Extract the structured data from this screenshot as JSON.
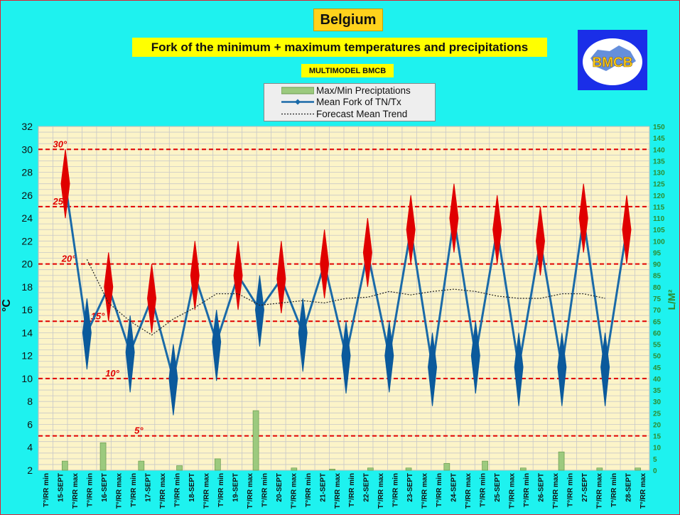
{
  "header": {
    "title": "Belgium",
    "subtitle": "Fork of the minimum + maximum temperatures and precipitations",
    "model": "MULTIMODEL BMCB",
    "logo_text": "BMCB"
  },
  "legend": {
    "items": [
      "Max/Min Preciptations",
      "Mean Fork of TN/Tx",
      "Forecast Mean Trend"
    ]
  },
  "colors": {
    "background": "#1ef2ef",
    "plot_bg": "#fcf4c8",
    "fork_line": "#1a6aa8",
    "min_marker": "#0b5a9c",
    "max_marker": "#e00000",
    "reference_line": "#e00000",
    "precip_bar": "#9cca7e",
    "right_axis": "#2e8b2e"
  },
  "chart_data": {
    "type": "line",
    "ylabel": "°C",
    "y2label": "L/M²",
    "ylim": [
      2,
      32
    ],
    "y_ticks": [
      2,
      4,
      6,
      8,
      10,
      12,
      14,
      16,
      18,
      20,
      22,
      24,
      26,
      28,
      30,
      32
    ],
    "y2lim": [
      0,
      150
    ],
    "y2_ticks": [
      0,
      5,
      10,
      15,
      20,
      25,
      30,
      35,
      40,
      45,
      50,
      55,
      60,
      65,
      70,
      75,
      80,
      85,
      90,
      95,
      100,
      105,
      110,
      115,
      120,
      125,
      130,
      135,
      140,
      145,
      150
    ],
    "grid": true,
    "x_ticks": [
      "T°/RR min",
      "15-SEPT",
      "T°/RR max",
      "T°/RR min",
      "16-SEPT",
      "T°/RR max",
      "T°/RR min",
      "17-SEPT",
      "T°/RR max",
      "T°/RR min",
      "18-SEPT",
      "T°/RR max",
      "T°/RR min",
      "19-SEPT",
      "T°/RR max",
      "T°/RR min",
      "20-SEPT",
      "T°/RR max",
      "T°/RR min",
      "21-SEPT",
      "T°/RR max",
      "T°/RR min",
      "22-SEPT",
      "T°/RR max",
      "T°/RR min",
      "23-SEPT",
      "T°/RR max",
      "T°/RR min",
      "24-SEPT",
      "T°/RR max",
      "T°/RR min",
      "25-SEPT",
      "T°/RR max",
      "T°/RR min",
      "26-SEPT",
      "T°/RR max",
      "T°/RR min",
      "27-SEPT",
      "T°/RR max",
      "T°/RR min",
      "28-SEPT",
      "T°/RR max"
    ],
    "reference_lines": [
      {
        "value": 30,
        "label": "30°"
      },
      {
        "value": 25,
        "label": "25°"
      },
      {
        "value": 20,
        "label": "20°"
      },
      {
        "value": 15,
        "label": "15°"
      },
      {
        "value": 10,
        "label": "10°"
      },
      {
        "value": 5,
        "label": "5°"
      }
    ],
    "series": [
      {
        "name": "Mean Fork of TN/Tx",
        "points": [
          {
            "kind": "max",
            "mean": 27.0,
            "low": 24.0,
            "high": 30.0
          },
          {
            "kind": "min",
            "mean": 14.0,
            "low": 10.8,
            "high": 17.0
          },
          {
            "kind": "max",
            "mean": 18.0,
            "low": 15.0,
            "high": 21.0
          },
          {
            "kind": "min",
            "mean": 12.3,
            "low": 8.8,
            "high": 15.5
          },
          {
            "kind": "max",
            "mean": 17.0,
            "low": 14.0,
            "high": 20.0
          },
          {
            "kind": "min",
            "mean": 10.0,
            "low": 6.8,
            "high": 13.0
          },
          {
            "kind": "max",
            "mean": 19.0,
            "low": 16.0,
            "high": 22.0
          },
          {
            "kind": "min",
            "mean": 13.2,
            "low": 9.8,
            "high": 16.0
          },
          {
            "kind": "max",
            "mean": 19.0,
            "low": 16.0,
            "high": 22.0
          },
          {
            "kind": "min",
            "mean": 16.0,
            "low": 12.8,
            "high": 19.0
          },
          {
            "kind": "max",
            "mean": 18.7,
            "low": 15.7,
            "high": 22.0
          },
          {
            "kind": "min",
            "mean": 14.0,
            "low": 10.6,
            "high": 17.0
          },
          {
            "kind": "max",
            "mean": 20.0,
            "low": 17.0,
            "high": 23.0
          },
          {
            "kind": "min",
            "mean": 12.0,
            "low": 8.7,
            "high": 15.0
          },
          {
            "kind": "max",
            "mean": 21.0,
            "low": 18.0,
            "high": 24.0
          },
          {
            "kind": "min",
            "mean": 12.0,
            "low": 8.8,
            "high": 15.0
          },
          {
            "kind": "max",
            "mean": 23.0,
            "low": 20.0,
            "high": 26.0
          },
          {
            "kind": "min",
            "mean": 11.0,
            "low": 7.6,
            "high": 14.0
          },
          {
            "kind": "max",
            "mean": 24.0,
            "low": 21.0,
            "high": 27.0
          },
          {
            "kind": "min",
            "mean": 12.0,
            "low": 8.7,
            "high": 15.0
          },
          {
            "kind": "max",
            "mean": 23.0,
            "low": 20.0,
            "high": 26.0
          },
          {
            "kind": "min",
            "mean": 11.0,
            "low": 7.6,
            "high": 14.0
          },
          {
            "kind": "max",
            "mean": 22.0,
            "low": 19.0,
            "high": 25.0
          },
          {
            "kind": "min",
            "mean": 11.0,
            "low": 7.6,
            "high": 14.0
          },
          {
            "kind": "max",
            "mean": 24.0,
            "low": 21.0,
            "high": 27.0
          },
          {
            "kind": "min",
            "mean": 11.0,
            "low": 7.6,
            "high": 14.0
          },
          {
            "kind": "max",
            "mean": 23.0,
            "low": 20.0,
            "high": 26.0
          }
        ]
      },
      {
        "name": "Forecast Mean Trend",
        "values": [
          null,
          20.4,
          16.6,
          15.0,
          13.8,
          15.2,
          16.2,
          17.4,
          17.4,
          16.4,
          16.6,
          16.8,
          16.6,
          17.0,
          17.1,
          17.6,
          17.3,
          17.6,
          17.8,
          17.6,
          17.2,
          17.0,
          17.0,
          17.4,
          17.4,
          17.0,
          null
        ]
      },
      {
        "name": "Max/Min Preciptations",
        "values": [
          4,
          12,
          4,
          2,
          5,
          26,
          1,
          0.5,
          1,
          1,
          3,
          4,
          1,
          8,
          1,
          1
        ]
      }
    ]
  }
}
